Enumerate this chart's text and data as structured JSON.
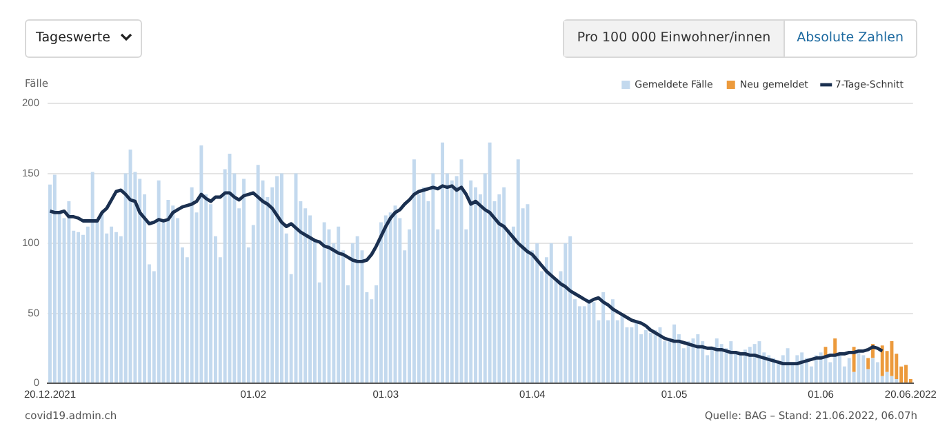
{
  "chart_data": {
    "type": "bar",
    "ylabel": "Fälle",
    "stacked": true,
    "grid": "y",
    "legend": "top right",
    "categories": [
      "20.12.2021",
      null,
      null,
      null,
      null,
      null,
      null,
      null,
      null,
      null,
      null,
      null,
      null,
      null,
      null,
      null,
      null,
      null,
      null,
      null,
      null,
      null,
      null,
      null,
      null,
      null,
      null,
      null,
      null,
      null,
      null,
      null,
      null,
      null,
      null,
      null,
      null,
      null,
      null,
      null,
      null,
      null,
      null,
      "01.02",
      null,
      null,
      null,
      null,
      null,
      null,
      null,
      null,
      null,
      null,
      null,
      null,
      null,
      null,
      null,
      null,
      null,
      null,
      null,
      null,
      null,
      null,
      null,
      null,
      null,
      null,
      null,
      "01.03",
      null,
      null,
      null,
      null,
      null,
      null,
      null,
      null,
      null,
      null,
      null,
      null,
      null,
      null,
      null,
      null,
      null,
      null,
      null,
      null,
      null,
      null,
      null,
      null,
      null,
      null,
      null,
      null,
      null,
      null,
      "01.04",
      null,
      null,
      null,
      null,
      null,
      null,
      null,
      null,
      null,
      null,
      null,
      null,
      null,
      null,
      null,
      null,
      null,
      null,
      null,
      null,
      null,
      null,
      null,
      null,
      null,
      null,
      null,
      null,
      null,
      "01.05",
      null,
      null,
      null,
      null,
      null,
      null,
      null,
      null,
      null,
      null,
      null,
      null,
      null,
      null,
      null,
      null,
      null,
      null,
      null,
      null,
      null,
      null,
      null,
      null,
      null,
      null,
      null,
      null,
      null,
      null,
      "01.06",
      null,
      null,
      null,
      null,
      null,
      null,
      null,
      null,
      null,
      null,
      null,
      null,
      null,
      null,
      null,
      null,
      null,
      null,
      "20.06.2022"
    ],
    "series": [
      {
        "name": "Gemeldete Fälle",
        "color": "#c3d9ee",
        "values": [
          142,
          149,
          122,
          118,
          130,
          109,
          108,
          106,
          112,
          151,
          115,
          122,
          107,
          112,
          108,
          105,
          150,
          167,
          151,
          146,
          135,
          85,
          80,
          145,
          115,
          131,
          127,
          118,
          97,
          90,
          140,
          122,
          170,
          135,
          128,
          105,
          90,
          153,
          164,
          150,
          125,
          146,
          97,
          113,
          156,
          145,
          133,
          140,
          148,
          150,
          107,
          78,
          150,
          130,
          125,
          120,
          103,
          72,
          115,
          110,
          100,
          112,
          95,
          70,
          100,
          105,
          95,
          65,
          60,
          70,
          115,
          120,
          122,
          127,
          118,
          95,
          110,
          160,
          135,
          140,
          130,
          150,
          110,
          172,
          150,
          145,
          148,
          160,
          110,
          145,
          140,
          135,
          150,
          172,
          130,
          135,
          140,
          110,
          112,
          160,
          125,
          128,
          95,
          100,
          80,
          90,
          100,
          75,
          80,
          100,
          105,
          60,
          55,
          55,
          60,
          58,
          45,
          65,
          45,
          60,
          45,
          48,
          40,
          40,
          45,
          35,
          38,
          36,
          38,
          40,
          30,
          30,
          42,
          35,
          25,
          30,
          32,
          35,
          30,
          20,
          25,
          32,
          28,
          25,
          30,
          22,
          20,
          24,
          26,
          28,
          30,
          22,
          20,
          18,
          15,
          20,
          25,
          15,
          20,
          22,
          18,
          12,
          20,
          22,
          18,
          15,
          20,
          20,
          12,
          18,
          8,
          22,
          20,
          10,
          18,
          15,
          5,
          8,
          5,
          3,
          null,
          null,
          0
        ]
      },
      {
        "name": "Neu gemeldet",
        "color": "#ec9a3c",
        "values": [
          null,
          null,
          null,
          null,
          null,
          null,
          null,
          null,
          null,
          null,
          null,
          null,
          null,
          null,
          null,
          null,
          null,
          null,
          null,
          null,
          null,
          null,
          null,
          null,
          null,
          null,
          null,
          null,
          null,
          null,
          null,
          null,
          null,
          null,
          null,
          null,
          null,
          null,
          null,
          null,
          null,
          null,
          null,
          null,
          null,
          null,
          null,
          null,
          null,
          null,
          null,
          null,
          null,
          null,
          null,
          null,
          null,
          null,
          null,
          null,
          null,
          null,
          null,
          null,
          null,
          null,
          null,
          null,
          null,
          null,
          null,
          null,
          null,
          null,
          null,
          null,
          null,
          null,
          null,
          null,
          null,
          null,
          null,
          null,
          null,
          null,
          null,
          null,
          null,
          null,
          null,
          null,
          null,
          null,
          null,
          null,
          null,
          null,
          null,
          null,
          null,
          null,
          null,
          null,
          null,
          null,
          null,
          null,
          null,
          null,
          null,
          null,
          null,
          null,
          null,
          null,
          null,
          null,
          null,
          null,
          null,
          null,
          null,
          null,
          null,
          null,
          null,
          null,
          null,
          null,
          null,
          null,
          null,
          null,
          null,
          null,
          null,
          null,
          null,
          null,
          null,
          null,
          null,
          null,
          null,
          null,
          null,
          null,
          null,
          null,
          null,
          null,
          null,
          null,
          null,
          null,
          null,
          null,
          null,
          null,
          null,
          null,
          null,
          null,
          8,
          null,
          12,
          null,
          null,
          null,
          18,
          null,
          null,
          8,
          10,
          null,
          22,
          15,
          25,
          18,
          12,
          13,
          3
        ]
      },
      {
        "name": "7-Tage-Schnitt",
        "type": "line",
        "color": "#1b3050",
        "values": [
          123,
          122,
          122,
          123,
          119,
          119,
          118,
          116,
          116,
          116,
          116,
          122,
          125,
          131,
          137,
          138,
          135,
          131,
          130,
          122,
          118,
          114,
          115,
          117,
          116,
          117,
          122,
          124,
          126,
          127,
          128,
          130,
          135,
          132,
          130,
          133,
          133,
          136,
          136,
          133,
          131,
          134,
          135,
          136,
          133,
          130,
          128,
          125,
          120,
          115,
          112,
          114,
          111,
          108,
          106,
          104,
          102,
          101,
          98,
          97,
          95,
          93,
          92,
          90,
          88,
          87,
          87,
          88,
          92,
          98,
          105,
          112,
          118,
          122,
          124,
          128,
          131,
          135,
          137,
          138,
          139,
          140,
          139,
          141,
          140,
          141,
          138,
          140,
          135,
          128,
          130,
          127,
          124,
          122,
          118,
          114,
          112,
          108,
          104,
          100,
          97,
          94,
          92,
          88,
          84,
          80,
          77,
          74,
          71,
          69,
          66,
          64,
          62,
          60,
          58,
          60,
          61,
          58,
          56,
          53,
          51,
          49,
          47,
          45,
          44,
          43,
          41,
          38,
          36,
          34,
          32,
          31,
          30,
          30,
          29,
          28,
          27,
          26,
          26,
          25,
          25,
          24,
          24,
          23,
          22,
          22,
          21,
          21,
          20,
          20,
          19,
          18,
          17,
          16,
          15,
          14,
          14,
          14,
          14,
          15,
          16,
          17,
          18,
          18,
          19,
          20,
          20,
          21,
          21,
          22,
          22,
          23,
          23,
          24,
          26,
          25,
          23,
          null,
          null,
          null,
          null,
          null,
          null
        ]
      }
    ],
    "ylim": [
      0,
      200
    ],
    "yticks": [
      0,
      50,
      100,
      150,
      200
    ],
    "annotations": [
      "Tageswerte",
      "Pro 100 000 Einwohner/innen",
      "Absolute Zahlen",
      "covid19.admin.ch",
      "Quelle: BAG – Stand: 21.06.2022, 06.07h"
    ]
  }
}
